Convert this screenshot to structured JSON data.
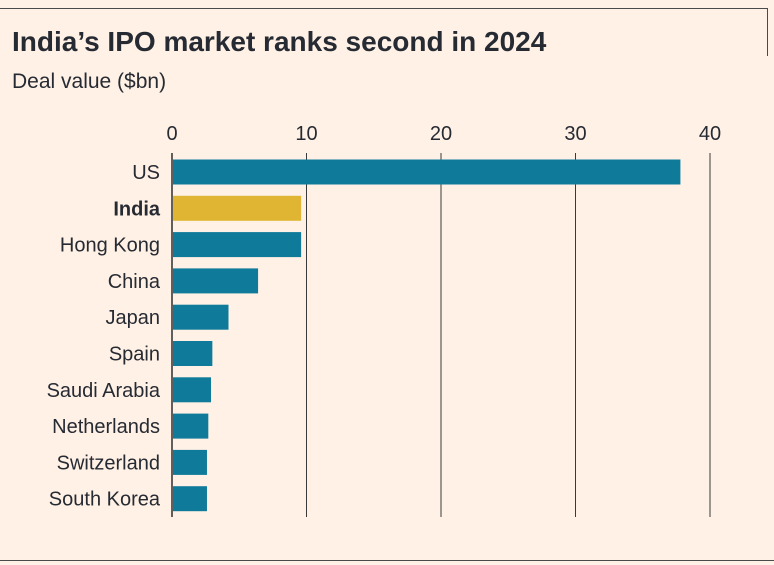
{
  "title": "India’s IPO market ranks second in 2024",
  "subtitle": "Deal value ($bn)",
  "colors": {
    "default": "#0F7A9A",
    "highlight": "#E0B534",
    "background": "#FFF1E5",
    "grid": "#3A3A3A"
  },
  "chart_data": {
    "type": "bar",
    "orientation": "horizontal",
    "title": "India’s IPO market ranks second in 2024",
    "subtitle": "Deal value ($bn)",
    "xlabel": "",
    "ylabel": "",
    "xlim": [
      0,
      40
    ],
    "x_ticks": [
      0,
      10,
      20,
      30,
      40
    ],
    "x_axis_position": "top",
    "grid": true,
    "categories": [
      "US",
      "India",
      "Hong Kong",
      "China",
      "Japan",
      "Spain",
      "Saudi Arabia",
      "Netherlands",
      "Switzerland",
      "South Korea"
    ],
    "values": [
      37.8,
      9.6,
      9.6,
      6.4,
      4.2,
      3.0,
      2.9,
      2.7,
      2.6,
      2.6
    ],
    "highlight": "India"
  }
}
